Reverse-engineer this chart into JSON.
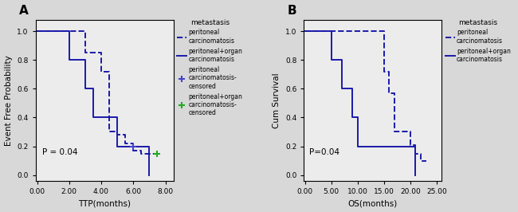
{
  "panel_A": {
    "title": "A",
    "xlabel": "TTP(months)",
    "ylabel": "Event Free Probability",
    "pvalue": "P = 0.04",
    "xlim": [
      -0.1,
      8.5
    ],
    "ylim": [
      -0.04,
      1.08
    ],
    "xticks": [
      0.0,
      2.0,
      4.0,
      6.0,
      8.0
    ],
    "yticks": [
      0.0,
      0.2,
      0.4,
      0.6,
      0.8,
      1.0
    ],
    "solid_line_x": [
      0,
      2,
      2,
      3,
      3,
      3.5,
      3.5,
      5,
      5,
      6,
      6,
      7,
      7
    ],
    "solid_line_y": [
      1.0,
      1.0,
      0.8,
      0.8,
      0.6,
      0.6,
      0.4,
      0.4,
      0.2,
      0.2,
      0.2,
      0.2,
      0.0
    ],
    "dashed_line_x": [
      0,
      2,
      2,
      3,
      3,
      4,
      4,
      4.5,
      4.5,
      5,
      5,
      5.5,
      5.5,
      6,
      6,
      6.5,
      6.5,
      7.5
    ],
    "dashed_line_y": [
      1.0,
      1.0,
      1.0,
      1.0,
      0.85,
      0.85,
      0.72,
      0.72,
      0.3,
      0.3,
      0.28,
      0.28,
      0.22,
      0.22,
      0.17,
      0.17,
      0.15,
      0.15
    ],
    "censored_blue_x": [
      6.0
    ],
    "censored_blue_y": [
      0.2
    ],
    "censored_green_x": [
      7.5
    ],
    "censored_green_y": [
      0.15
    ],
    "legend_title": "metastasis",
    "legend_entries": [
      "peritoneal\ncarcinomatosis",
      "peritoneal+organ\ncarcinomatosis",
      "peritoneal\ncarcinomatosis-\ncensored",
      "peritoneal+organ\ncarcinomatosis-\ncensored"
    ]
  },
  "panel_B": {
    "title": "B",
    "xlabel": "OS(months)",
    "ylabel": "Cum Survival",
    "pvalue": "P=0.04",
    "xlim": [
      -0.2,
      26
    ],
    "ylim": [
      -0.04,
      1.08
    ],
    "xticks": [
      0.0,
      5.0,
      10.0,
      15.0,
      20.0,
      25.0
    ],
    "yticks": [
      0.0,
      0.2,
      0.4,
      0.6,
      0.8,
      1.0
    ],
    "solid_line_x": [
      0,
      5,
      5,
      7,
      7,
      9,
      9,
      10,
      10,
      20,
      20,
      21,
      21
    ],
    "solid_line_y": [
      1.0,
      1.0,
      0.8,
      0.8,
      0.6,
      0.6,
      0.4,
      0.4,
      0.2,
      0.2,
      0.2,
      0.2,
      0.0
    ],
    "dashed_line_x": [
      0,
      5,
      5,
      15,
      15,
      16,
      16,
      17,
      17,
      20,
      20,
      21,
      21,
      22,
      22,
      23,
      23
    ],
    "dashed_line_y": [
      1.0,
      1.0,
      1.0,
      1.0,
      0.72,
      0.72,
      0.57,
      0.57,
      0.3,
      0.3,
      0.21,
      0.21,
      0.15,
      0.15,
      0.1,
      0.1,
      0.1
    ],
    "legend_title": "metastasis",
    "legend_entries": [
      "peritoneal\ncarcinomatosis",
      "peritoneal+organ\ncarcinomatosis"
    ]
  },
  "line_color": "#1a1aaa",
  "line_width": 1.4,
  "bg_color": "#ececec",
  "fig_bg": "#d8d8d8",
  "tick_label_size": 6.5,
  "axis_label_size": 7.5,
  "legend_fontsize": 5.5,
  "legend_title_fontsize": 6.5,
  "pvalue_fontsize": 7.5,
  "title_fontsize": 11
}
